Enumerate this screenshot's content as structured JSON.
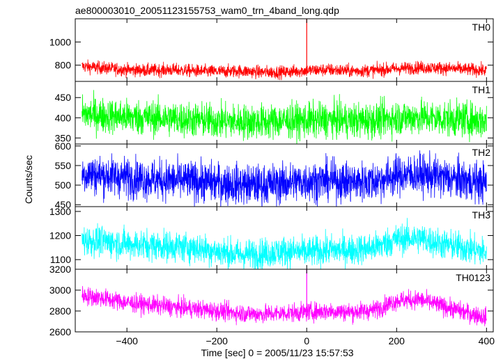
{
  "chart_data": {
    "type": "line",
    "title": "ae800003010_20051123155753_wam0_trn_4band_long.qdp",
    "xlabel": "Time [sec] 0 = 2005/11/23 15:57:53",
    "ylabel": "Counts/sec",
    "xlim": [
      -515,
      415
    ],
    "x_ticks": [
      -400,
      -200,
      0,
      200,
      400
    ],
    "grid": false,
    "panels": [
      {
        "name": "TH0",
        "color": "#ff0000",
        "ylim": [
          660,
          1200
        ],
        "y_ticks": [
          800,
          1000
        ],
        "x": [
          -500,
          -450,
          -400,
          -350,
          -300,
          -250,
          -200,
          -150,
          -100,
          -50,
          0,
          50,
          100,
          150,
          200,
          250,
          300,
          350,
          400
        ],
        "trend": [
          790,
          775,
          760,
          755,
          760,
          750,
          745,
          750,
          740,
          740,
          755,
          760,
          750,
          755,
          770,
          780,
          775,
          765,
          755
        ],
        "noise": 28,
        "spike": {
          "x": 0,
          "y": 1200
        }
      },
      {
        "name": "TH1",
        "color": "#00ff00",
        "ylim": [
          335,
          490
        ],
        "y_ticks": [
          350,
          400,
          450
        ],
        "x": [
          -500,
          -450,
          -400,
          -350,
          -300,
          -250,
          -200,
          -150,
          -100,
          -50,
          0,
          50,
          100,
          150,
          200,
          250,
          300,
          350,
          400
        ],
        "trend": [
          410,
          405,
          402,
          400,
          398,
          395,
          392,
          390,
          390,
          392,
          393,
          395,
          393,
          394,
          400,
          402,
          398,
          396,
          392
        ],
        "noise": 22
      },
      {
        "name": "TH2",
        "color": "#0000ff",
        "ylim": [
          445,
          605
        ],
        "y_ticks": [
          450,
          500,
          550,
          600
        ],
        "x": [
          -500,
          -450,
          -400,
          -350,
          -300,
          -250,
          -200,
          -150,
          -100,
          -50,
          0,
          50,
          100,
          150,
          200,
          250,
          300,
          350,
          400
        ],
        "trend": [
          530,
          525,
          520,
          515,
          512,
          510,
          506,
          502,
          500,
          505,
          510,
          512,
          508,
          510,
          525,
          528,
          520,
          512,
          505
        ],
        "noise": 26
      },
      {
        "name": "TH3",
        "color": "#00ffff",
        "ylim": [
          1060,
          1320
        ],
        "y_ticks": [
          1100,
          1200,
          1300
        ],
        "x": [
          -500,
          -450,
          -400,
          -350,
          -300,
          -250,
          -200,
          -150,
          -100,
          -50,
          0,
          50,
          100,
          150,
          200,
          250,
          300,
          350,
          400
        ],
        "trend": [
          1180,
          1175,
          1165,
          1160,
          1155,
          1150,
          1135,
          1120,
          1125,
          1135,
          1130,
          1140,
          1140,
          1150,
          1185,
          1190,
          1165,
          1150,
          1130
        ],
        "noise": 32
      },
      {
        "name": "TH0123",
        "color": "#ff00ff",
        "ylim": [
          2600,
          3200
        ],
        "y_ticks": [
          2600,
          2800,
          3000,
          3200
        ],
        "x": [
          -500,
          -450,
          -400,
          -350,
          -300,
          -250,
          -200,
          -150,
          -100,
          -50,
          0,
          50,
          100,
          150,
          200,
          250,
          300,
          350,
          400
        ],
        "trend": [
          2950,
          2920,
          2880,
          2860,
          2840,
          2820,
          2800,
          2780,
          2770,
          2780,
          2790,
          2800,
          2790,
          2810,
          2900,
          2910,
          2850,
          2790,
          2740
        ],
        "noise": 45,
        "spike": {
          "x": 0,
          "y": 3200
        }
      }
    ]
  }
}
